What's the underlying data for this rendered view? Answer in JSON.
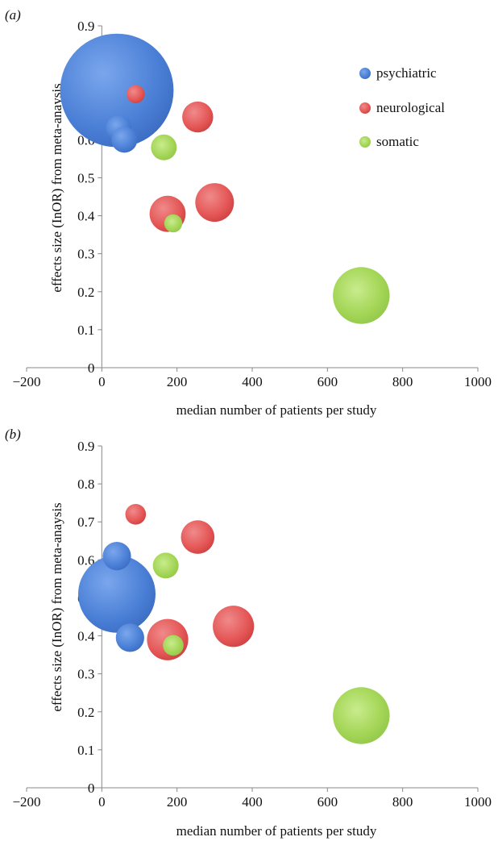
{
  "chart_data": [
    {
      "type": "bubble",
      "panel_label": "(a)",
      "xlabel": "median number of patients per study",
      "ylabel": "effects size (InOR) from meta-anaysis",
      "xlim": [
        -200,
        1000
      ],
      "ylim": [
        0,
        0.9
      ],
      "xticks": [
        "−200",
        "0",
        "200",
        "400",
        "600",
        "800",
        "1000"
      ],
      "yticks": [
        "0",
        "0.1",
        "0.2",
        "0.3",
        "0.4",
        "0.5",
        "0.6",
        "0.7",
        "0.8",
        "0.9"
      ],
      "legend": {
        "position": "top-right",
        "entries": [
          {
            "label": "psychiatric",
            "color": "#4a7fd6"
          },
          {
            "label": "neurological",
            "color": "#e45555"
          },
          {
            "label": "somatic",
            "color": "#a5d658"
          }
        ]
      },
      "series": [
        {
          "name": "psychiatric",
          "color": "#4a7fd6",
          "points": [
            {
              "x": 40,
              "y": 0.73,
              "size": 44
            },
            {
              "x": 45,
              "y": 0.63,
              "size": 10
            },
            {
              "x": 60,
              "y": 0.6,
              "size": 10
            }
          ]
        },
        {
          "name": "neurological",
          "color": "#e45555",
          "points": [
            {
              "x": 90,
              "y": 0.72,
              "size": 7
            },
            {
              "x": 255,
              "y": 0.66,
              "size": 12
            },
            {
              "x": 175,
              "y": 0.405,
              "size": 14
            },
            {
              "x": 300,
              "y": 0.435,
              "size": 15
            }
          ]
        },
        {
          "name": "somatic",
          "color": "#a5d658",
          "points": [
            {
              "x": 165,
              "y": 0.58,
              "size": 10
            },
            {
              "x": 190,
              "y": 0.38,
              "size": 7
            },
            {
              "x": 690,
              "y": 0.19,
              "size": 22
            }
          ]
        }
      ]
    },
    {
      "type": "bubble",
      "panel_label": "(b)",
      "xlabel": "median number of patients per study",
      "ylabel": "effects size (InOR) from meta-anaysis",
      "xlim": [
        -200,
        1000
      ],
      "ylim": [
        0,
        0.9
      ],
      "xticks": [
        "−200",
        "0",
        "200",
        "400",
        "600",
        "800",
        "1000"
      ],
      "yticks": [
        "0",
        "0.1",
        "0.2",
        "0.3",
        "0.4",
        "0.5",
        "0.6",
        "0.7",
        "0.8",
        "0.9"
      ],
      "series": [
        {
          "name": "psychiatric",
          "color": "#4a7fd6",
          "points": [
            {
              "x": 40,
              "y": 0.61,
              "size": 11
            },
            {
              "x": 75,
              "y": 0.395,
              "size": 11
            },
            {
              "x": 40,
              "y": 0.51,
              "size": 30
            }
          ]
        },
        {
          "name": "neurological",
          "color": "#e45555",
          "points": [
            {
              "x": 90,
              "y": 0.72,
              "size": 8
            },
            {
              "x": 255,
              "y": 0.66,
              "size": 13
            },
            {
              "x": 175,
              "y": 0.39,
              "size": 16
            },
            {
              "x": 350,
              "y": 0.425,
              "size": 16
            }
          ]
        },
        {
          "name": "somatic",
          "color": "#a5d658",
          "points": [
            {
              "x": 170,
              "y": 0.585,
              "size": 10
            },
            {
              "x": 190,
              "y": 0.375,
              "size": 8
            },
            {
              "x": 690,
              "y": 0.19,
              "size": 22
            }
          ]
        }
      ]
    }
  ]
}
